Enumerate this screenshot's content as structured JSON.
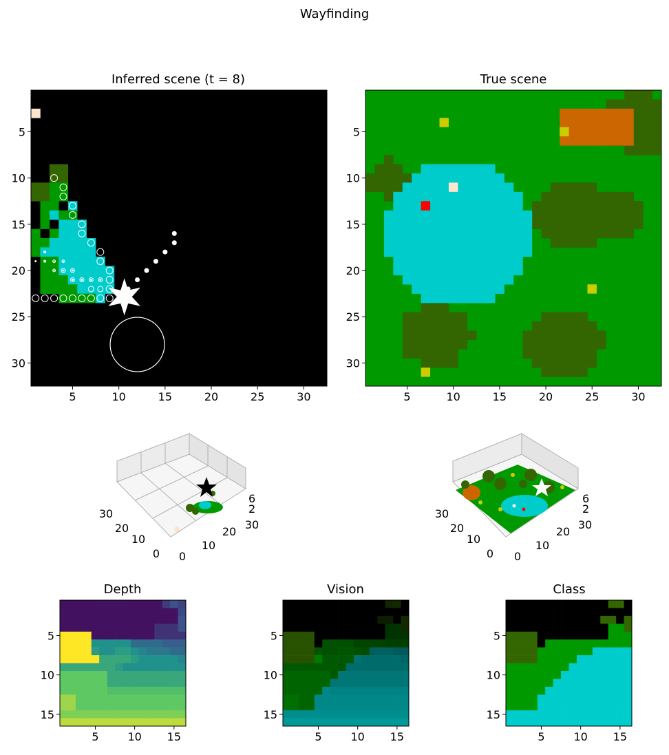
{
  "figure_title": "Wayfinding",
  "colors": {
    "black": "#000000",
    "grass": "#009900",
    "tree": "#336600",
    "water": "#00cccc",
    "bush": "#cc6600",
    "flower": "#cccc00",
    "rock": "#ffe5cc",
    "agent": "#ffffff",
    "marker": "#ff0000",
    "depth_far": "#440154",
    "depth_near": "#fde725"
  },
  "chart_data": [
    {
      "type": "heatmap",
      "title": "Inferred scene (t = 8)",
      "xticks": [
        5,
        10,
        15,
        20,
        25,
        30
      ],
      "yticks": [
        5,
        10,
        15,
        20,
        25,
        30
      ],
      "xlim": [
        0.5,
        32.5
      ],
      "ylim": [
        32.5,
        0.5
      ],
      "grid": false,
      "cells": [
        {
          "x": 1,
          "y": 3,
          "class": "rock"
        },
        {
          "x": 3,
          "y": 9,
          "class": "tree"
        },
        {
          "x": 4,
          "y": 9,
          "class": "tree"
        },
        {
          "x": 3,
          "y": 10,
          "class": "tree"
        },
        {
          "x": 4,
          "y": 10,
          "class": "tree"
        },
        {
          "x": 1,
          "y": 11,
          "class": "tree"
        },
        {
          "x": 2,
          "y": 11,
          "class": "tree"
        },
        {
          "x": 3,
          "y": 11,
          "class": "grass"
        },
        {
          "x": 4,
          "y": 11,
          "class": "grass"
        },
        {
          "x": 1,
          "y": 12,
          "class": "tree"
        },
        {
          "x": 2,
          "y": 12,
          "class": "tree"
        },
        {
          "x": 3,
          "y": 12,
          "class": "grass"
        },
        {
          "x": 4,
          "y": 12,
          "class": "grass"
        },
        {
          "x": 2,
          "y": 13,
          "class": "grass"
        },
        {
          "x": 3,
          "y": 13,
          "class": "grass"
        },
        {
          "x": 5,
          "y": 13,
          "class": "water"
        },
        {
          "x": 2,
          "y": 14,
          "class": "grass"
        },
        {
          "x": 3,
          "y": 14,
          "class": "water"
        },
        {
          "x": 4,
          "y": 14,
          "class": "grass"
        },
        {
          "x": 5,
          "y": 14,
          "class": "grass"
        },
        {
          "x": 2,
          "y": 15,
          "class": "grass"
        },
        {
          "x": 4,
          "y": 15,
          "class": "water"
        },
        {
          "x": 5,
          "y": 15,
          "class": "water"
        },
        {
          "x": 6,
          "y": 15,
          "class": "water"
        },
        {
          "x": 1,
          "y": 16,
          "class": "grass"
        },
        {
          "x": 3,
          "y": 16,
          "class": "grass"
        },
        {
          "x": 4,
          "y": 16,
          "class": "water"
        },
        {
          "x": 5,
          "y": 16,
          "class": "water"
        },
        {
          "x": 6,
          "y": 16,
          "class": "water"
        },
        {
          "x": 1,
          "y": 17,
          "class": "grass"
        },
        {
          "x": 2,
          "y": 17,
          "class": "grass"
        },
        {
          "x": 3,
          "y": 17,
          "class": "water"
        },
        {
          "x": 4,
          "y": 17,
          "class": "water"
        },
        {
          "x": 5,
          "y": 17,
          "class": "water"
        },
        {
          "x": 6,
          "y": 17,
          "class": "water"
        },
        {
          "x": 7,
          "y": 17,
          "class": "water"
        },
        {
          "x": 1,
          "y": 18,
          "class": "grass"
        },
        {
          "x": 2,
          "y": 18,
          "class": "water"
        },
        {
          "x": 3,
          "y": 18,
          "class": "water"
        },
        {
          "x": 4,
          "y": 18,
          "class": "water"
        },
        {
          "x": 5,
          "y": 18,
          "class": "water"
        },
        {
          "x": 6,
          "y": 18,
          "class": "water"
        },
        {
          "x": 7,
          "y": 18,
          "class": "water"
        },
        {
          "x": 2,
          "y": 19,
          "class": "grass"
        },
        {
          "x": 3,
          "y": 19,
          "class": "grass"
        },
        {
          "x": 4,
          "y": 19,
          "class": "water"
        },
        {
          "x": 5,
          "y": 19,
          "class": "water"
        },
        {
          "x": 6,
          "y": 19,
          "class": "water"
        },
        {
          "x": 7,
          "y": 19,
          "class": "water"
        },
        {
          "x": 8,
          "y": 19,
          "class": "water"
        },
        {
          "x": 2,
          "y": 20,
          "class": "grass"
        },
        {
          "x": 3,
          "y": 20,
          "class": "grass"
        },
        {
          "x": 4,
          "y": 20,
          "class": "water"
        },
        {
          "x": 5,
          "y": 20,
          "class": "water"
        },
        {
          "x": 6,
          "y": 20,
          "class": "water"
        },
        {
          "x": 7,
          "y": 20,
          "class": "water"
        },
        {
          "x": 8,
          "y": 20,
          "class": "water"
        },
        {
          "x": 9,
          "y": 20,
          "class": "water"
        },
        {
          "x": 2,
          "y": 21,
          "class": "grass"
        },
        {
          "x": 3,
          "y": 21,
          "class": "grass"
        },
        {
          "x": 4,
          "y": 21,
          "class": "grass"
        },
        {
          "x": 5,
          "y": 21,
          "class": "water"
        },
        {
          "x": 6,
          "y": 21,
          "class": "water"
        },
        {
          "x": 7,
          "y": 21,
          "class": "water"
        },
        {
          "x": 8,
          "y": 21,
          "class": "water"
        },
        {
          "x": 9,
          "y": 21,
          "class": "water"
        },
        {
          "x": 2,
          "y": 22,
          "class": "grass"
        },
        {
          "x": 3,
          "y": 22,
          "class": "grass"
        },
        {
          "x": 4,
          "y": 22,
          "class": "grass"
        },
        {
          "x": 5,
          "y": 22,
          "class": "grass"
        },
        {
          "x": 6,
          "y": 22,
          "class": "water"
        },
        {
          "x": 7,
          "y": 22,
          "class": "water"
        },
        {
          "x": 8,
          "y": 22,
          "class": "water"
        },
        {
          "x": 9,
          "y": 22,
          "class": "water"
        },
        {
          "x": 4,
          "y": 23,
          "class": "grass"
        },
        {
          "x": 5,
          "y": 23,
          "class": "grass"
        },
        {
          "x": 6,
          "y": 23,
          "class": "grass"
        },
        {
          "x": 7,
          "y": 23,
          "class": "grass"
        },
        {
          "x": 8,
          "y": 23,
          "class": "water"
        }
      ],
      "observations": [
        {
          "x": 3,
          "y": 10,
          "r": 5
        },
        {
          "x": 4,
          "y": 11,
          "r": 5
        },
        {
          "x": 4,
          "y": 12,
          "r": 5
        },
        {
          "x": 5,
          "y": 13,
          "r": 5
        },
        {
          "x": 5,
          "y": 14,
          "r": 5
        },
        {
          "x": 6,
          "y": 15,
          "r": 5
        },
        {
          "x": 6,
          "y": 16,
          "r": 5
        },
        {
          "x": 7,
          "y": 17,
          "r": 5
        },
        {
          "x": 8,
          "y": 18,
          "r": 5
        },
        {
          "x": 8,
          "y": 19,
          "r": 5
        },
        {
          "x": 9,
          "y": 20,
          "r": 5
        },
        {
          "x": 9,
          "y": 21,
          "r": 5
        },
        {
          "x": 9,
          "y": 22,
          "r": 5
        },
        {
          "x": 1,
          "y": 23,
          "r": 5
        },
        {
          "x": 2,
          "y": 23,
          "r": 5
        },
        {
          "x": 3,
          "y": 23,
          "r": 5
        },
        {
          "x": 4,
          "y": 23,
          "r": 5
        },
        {
          "x": 5,
          "y": 23,
          "r": 5
        },
        {
          "x": 6,
          "y": 23,
          "r": 5
        },
        {
          "x": 7,
          "y": 23,
          "r": 5
        },
        {
          "x": 8,
          "y": 23,
          "r": 5
        },
        {
          "x": 9,
          "y": 23,
          "r": 5
        },
        {
          "x": 1,
          "y": 19,
          "r": 1
        },
        {
          "x": 2,
          "y": 19,
          "r": 1.5
        },
        {
          "x": 3,
          "y": 19,
          "r": 2
        },
        {
          "x": 4,
          "y": 19,
          "r": 2
        },
        {
          "x": 3,
          "y": 20,
          "r": 2
        },
        {
          "x": 4,
          "y": 20,
          "r": 3
        },
        {
          "x": 5,
          "y": 20,
          "r": 3
        },
        {
          "x": 5,
          "y": 21,
          "r": 3
        },
        {
          "x": 6,
          "y": 21,
          "r": 3
        },
        {
          "x": 7,
          "y": 21,
          "r": 3
        },
        {
          "x": 8,
          "y": 21,
          "r": 3
        },
        {
          "x": 2,
          "y": 18,
          "r": 1.5
        },
        {
          "x": 7,
          "y": 22,
          "r": 4
        },
        {
          "x": 8,
          "y": 22,
          "r": 4
        }
      ],
      "path": [
        [
          16,
          16
        ],
        [
          16,
          17
        ],
        [
          15,
          18
        ],
        [
          14,
          19
        ],
        [
          13,
          20
        ],
        [
          12,
          21
        ],
        [
          11,
          22
        ]
      ],
      "agent_star": {
        "x": 10,
        "y": 23
      },
      "goal_circle": {
        "x": 12,
        "y": 28,
        "r": 3
      }
    },
    {
      "type": "heatmap",
      "title": "True scene",
      "xticks": [
        5,
        10,
        15,
        20,
        25,
        30
      ],
      "yticks": [
        5,
        10,
        15,
        20,
        25,
        30
      ],
      "xlim": [
        0.5,
        32.5
      ],
      "ylim": [
        32.5,
        0.5
      ],
      "grid": false,
      "background": "grass",
      "features": {
        "tree_clusters": [
          {
            "x": 30,
            "y": 4,
            "r": 4
          },
          {
            "x": 3,
            "y": 10,
            "r": 2.5
          },
          {
            "x": 23,
            "y": 14,
            "r": 4.5
          },
          {
            "x": 28,
            "y": 14,
            "r": 3
          },
          {
            "x": 8,
            "y": 27,
            "r": 4
          },
          {
            "x": 22,
            "y": 28,
            "r": 4.5
          }
        ],
        "bush_rects": [
          {
            "x1": 22,
            "y1": 3,
            "x2": 29,
            "y2": 6
          }
        ],
        "pond": {
          "x": 10.5,
          "y": 16,
          "r": 8
        },
        "flowers": [
          [
            9,
            4
          ],
          [
            22,
            5
          ],
          [
            25,
            22
          ],
          [
            7,
            31
          ]
        ],
        "rock": [
          10,
          11
        ],
        "marker": [
          7,
          13
        ]
      }
    },
    {
      "type": "scatter",
      "title": "",
      "view": "3d",
      "xticks": [
        0,
        10,
        20,
        30
      ],
      "yticks": [
        0,
        10,
        20,
        30
      ],
      "zticks": [
        2,
        6
      ]
    },
    {
      "type": "scatter",
      "title": "",
      "view": "3d",
      "xticks": [
        0,
        10,
        20,
        30
      ],
      "yticks": [
        0,
        10,
        20,
        30
      ],
      "zticks": [
        2,
        6
      ]
    },
    {
      "type": "heatmap",
      "title": "Depth",
      "xticks": [
        5,
        10,
        15
      ],
      "yticks": [
        5,
        10,
        15
      ],
      "xlim": [
        0.5,
        16.5
      ],
      "ylim": [
        16.5,
        0.5
      ],
      "rows": [
        [
          0.05,
          0.05,
          0.05,
          0.05,
          0.05,
          0.05,
          0.05,
          0.05,
          0.05,
          0.05,
          0.05,
          0.05,
          0.05,
          0.18,
          0.25,
          0.2
        ],
        [
          0.05,
          0.05,
          0.05,
          0.05,
          0.05,
          0.05,
          0.05,
          0.05,
          0.05,
          0.05,
          0.05,
          0.05,
          0.05,
          0.05,
          0.05,
          0.22
        ],
        [
          0.05,
          0.05,
          0.05,
          0.05,
          0.05,
          0.05,
          0.05,
          0.05,
          0.05,
          0.05,
          0.05,
          0.05,
          0.05,
          0.05,
          0.05,
          0.25
        ],
        [
          0.05,
          0.05,
          0.05,
          0.05,
          0.05,
          0.05,
          0.05,
          0.05,
          0.05,
          0.05,
          0.05,
          0.05,
          0.15,
          0.15,
          0.15,
          0.25
        ],
        [
          1,
          1,
          1,
          1,
          0.05,
          0.05,
          0.05,
          0.05,
          0.05,
          0.05,
          0.05,
          0.05,
          0.15,
          0.15,
          0.15,
          0.15
        ],
        [
          1,
          1,
          1,
          1,
          0.5,
          0.5,
          0.5,
          0.5,
          0.5,
          0.35,
          0.35,
          0.35,
          0.35,
          0.3,
          0.3,
          0.3
        ],
        [
          1,
          1,
          1,
          1,
          0.55,
          0.5,
          0.5,
          0.55,
          0.55,
          0.5,
          0.45,
          0.4,
          0.4,
          0.4,
          0.35,
          0.35
        ],
        [
          1,
          1,
          1,
          1,
          1,
          0.6,
          0.6,
          0.6,
          0.6,
          0.55,
          0.5,
          0.5,
          0.5,
          0.5,
          0.5,
          0.45
        ],
        [
          0.6,
          0.6,
          0.6,
          0.6,
          0.6,
          0.6,
          0.6,
          0.55,
          0.5,
          0.5,
          0.5,
          0.5,
          0.5,
          0.5,
          0.5,
          0.5
        ],
        [
          0.75,
          0.75,
          0.75,
          0.75,
          0.75,
          0.75,
          0.6,
          0.6,
          0.6,
          0.6,
          0.6,
          0.6,
          0.6,
          0.6,
          0.6,
          0.6
        ],
        [
          0.75,
          0.75,
          0.75,
          0.75,
          0.75,
          0.75,
          0.6,
          0.6,
          0.6,
          0.6,
          0.6,
          0.6,
          0.6,
          0.6,
          0.6,
          0.6
        ],
        [
          0.75,
          0.75,
          0.75,
          0.75,
          0.75,
          0.75,
          0.7,
          0.7,
          0.7,
          0.7,
          0.7,
          0.7,
          0.7,
          0.7,
          0.7,
          0.7
        ],
        [
          0.85,
          0.85,
          0.75,
          0.75,
          0.75,
          0.75,
          0.75,
          0.75,
          0.75,
          0.75,
          0.75,
          0.75,
          0.75,
          0.75,
          0.75,
          0.75
        ],
        [
          0.85,
          0.85,
          0.75,
          0.75,
          0.75,
          0.75,
          0.75,
          0.75,
          0.75,
          0.75,
          0.75,
          0.75,
          0.75,
          0.75,
          0.75,
          0.75
        ],
        [
          0.8,
          0.8,
          0.8,
          0.8,
          0.8,
          0.8,
          0.8,
          0.8,
          0.8,
          0.8,
          0.8,
          0.8,
          0.8,
          0.8,
          0.8,
          0.8
        ],
        [
          0.9,
          0.9,
          0.9,
          0.9,
          0.9,
          0.9,
          0.9,
          0.9,
          0.9,
          0.9,
          0.9,
          0.9,
          0.9,
          0.9,
          0.9,
          0.9
        ]
      ]
    },
    {
      "type": "heatmap",
      "title": "Vision",
      "xticks": [
        5,
        10,
        15
      ],
      "yticks": [
        5,
        10,
        15
      ],
      "xlim": [
        0.5,
        16.5
      ],
      "ylim": [
        16.5,
        0.5
      ]
    },
    {
      "type": "heatmap",
      "title": "Class",
      "xticks": [
        5,
        10,
        15
      ],
      "yticks": [
        5,
        10,
        15
      ],
      "xlim": [
        0.5,
        16.5
      ],
      "ylim": [
        16.5,
        0.5
      ],
      "rows": [
        "0000000000000TT0",
        "0000000000000000",
        "000000000000TT0T",
        "0000000000000GGT",
        "TTTT000000000GGG",
        "TTTT0GGGGGGGGGGG",
        "TTTTGGGGGGGWWWWW",
        "TTTTGGGGGWWWWWWW",
        "GGGGGGGGWWWWWWWW",
        "GGGGGGGWWWWWWWWW",
        "GGGGGGWWWWWWWWWW",
        "GGGGGWWWWWWWWWWW",
        "GGGGWWWWWWWWWWWW",
        "GGGGWWWWWWWWWWWW",
        "WWWWWWWWWWWWWWWW",
        "WWWWWWWWWWWWWWWW"
      ]
    }
  ]
}
